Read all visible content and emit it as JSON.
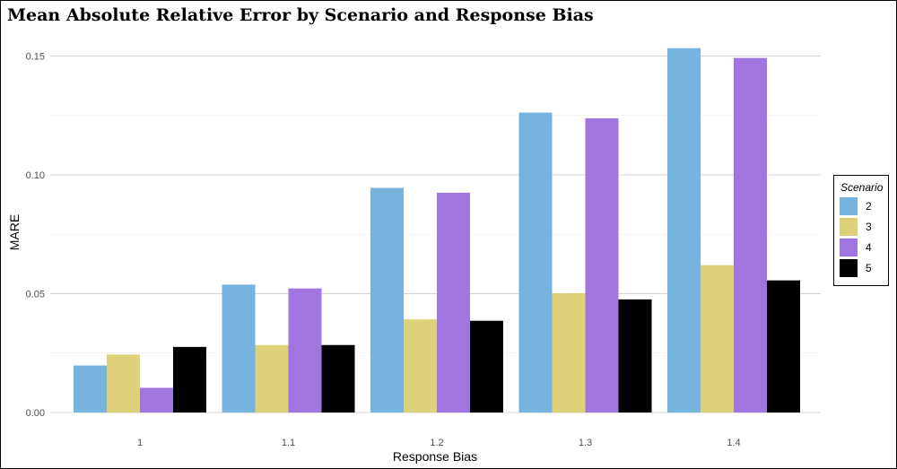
{
  "chart_data": {
    "type": "bar",
    "title": "Mean Absolute Relative Error by Scenario and Response Bias",
    "xlabel": "Response Bias",
    "ylabel": "MARE",
    "categories": [
      "1",
      "1.1",
      "1.2",
      "1.3",
      "1.4"
    ],
    "ylim": [
      0,
      0.155
    ],
    "yticks": [
      "0.00",
      "0.05",
      "0.10",
      "0.15"
    ],
    "grid": true,
    "legend_position": "right",
    "legend_title": "Scenario",
    "series": [
      {
        "name": "2",
        "color": "#77b3df",
        "values": [
          0.0198,
          0.0538,
          0.0945,
          0.1262,
          0.1533
        ]
      },
      {
        "name": "3",
        "color": "#ddd27a",
        "values": [
          0.0244,
          0.0284,
          0.0392,
          0.0502,
          0.062
        ]
      },
      {
        "name": "4",
        "color": "#a175e0",
        "values": [
          0.0104,
          0.0522,
          0.0925,
          0.1238,
          0.1492
        ]
      },
      {
        "name": "5",
        "color": "#000000",
        "values": [
          0.0276,
          0.0284,
          0.0386,
          0.0476,
          0.0556
        ]
      }
    ]
  }
}
